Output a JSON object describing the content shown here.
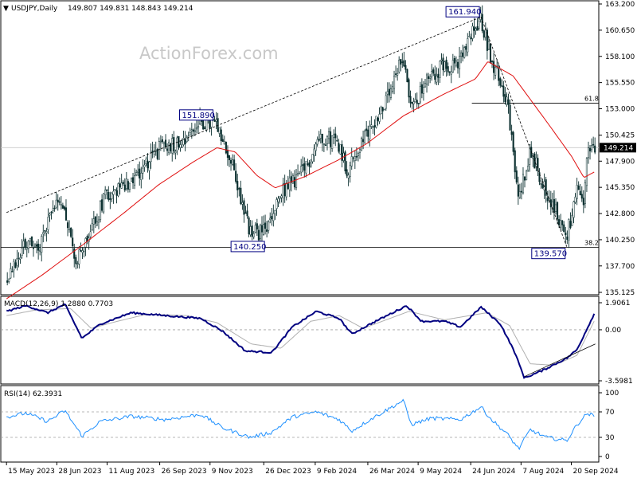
{
  "header": {
    "symbol_arrow": "▼",
    "symbol": "USDJPY,Daily",
    "ohlc": "149.807 149.831 148.843 149.214"
  },
  "watermark": "ActionForex.com",
  "colors": {
    "candle": "#0b2f2f",
    "ma": "#e01010",
    "macd": "#000080",
    "signal": "#b0b0b0",
    "rsi": "#1e90ff",
    "trendline": "#000000",
    "label_border": "#000080",
    "price_bg": "#000000"
  },
  "chart_data": [
    {
      "type": "candlestick",
      "panel": "price",
      "title": "USDJPY,Daily",
      "series": [
        {
          "name": "USDJPY",
          "kind": "candles"
        },
        {
          "name": "moving average",
          "kind": "line"
        }
      ],
      "x_tick_labels": [
        "15 May 2023",
        "28 Jun 2023",
        "11 Aug 2023",
        "26 Sep 2023",
        "9 Nov 2023",
        "26 Dec 2023",
        "9 Feb 2024",
        "26 Mar 2024",
        "9 May 2024",
        "24 Jun 2024",
        "7 Aug 2024",
        "20 Sep 2024"
      ],
      "y_tick_labels": [
        "163.200",
        "160.650",
        "158.100",
        "155.550",
        "153.000",
        "150.425",
        "147.900",
        "145.350",
        "142.800",
        "140.250",
        "137.700",
        "135.125"
      ],
      "ylim": [
        135.125,
        163.2
      ],
      "current_price": "149.214",
      "close_path": [
        {
          "date": "2023-05-15",
          "value": 136.1
        },
        {
          "date": "2023-05-30",
          "value": 139.8
        },
        {
          "date": "2023-06-12",
          "value": 139.6
        },
        {
          "date": "2023-06-30",
          "value": 144.8
        },
        {
          "date": "2023-07-14",
          "value": 138.2
        },
        {
          "date": "2023-07-28",
          "value": 141.2
        },
        {
          "date": "2023-08-10",
          "value": 144.6
        },
        {
          "date": "2023-08-31",
          "value": 145.8
        },
        {
          "date": "2023-09-15",
          "value": 147.9
        },
        {
          "date": "2023-09-29",
          "value": 149.4
        },
        {
          "date": "2023-10-13",
          "value": 149.7
        },
        {
          "date": "2023-10-31",
          "value": 151.6
        },
        {
          "date": "2023-11-13",
          "value": 151.6
        },
        {
          "date": "2023-11-29",
          "value": 147.3
        },
        {
          "date": "2023-12-14",
          "value": 140.9
        },
        {
          "date": "2023-12-28",
          "value": 141.1
        },
        {
          "date": "2024-01-12",
          "value": 145.0
        },
        {
          "date": "2024-01-31",
          "value": 147.0
        },
        {
          "date": "2024-02-13",
          "value": 150.4
        },
        {
          "date": "2024-02-29",
          "value": 149.8
        },
        {
          "date": "2024-03-08",
          "value": 147.0
        },
        {
          "date": "2024-03-29",
          "value": 151.3
        },
        {
          "date": "2024-04-15",
          "value": 154.4
        },
        {
          "date": "2024-04-26",
          "value": 158.3
        },
        {
          "date": "2024-05-03",
          "value": 153.0
        },
        {
          "date": "2024-05-17",
          "value": 155.7
        },
        {
          "date": "2024-05-31",
          "value": 157.3
        },
        {
          "date": "2024-06-14",
          "value": 157.4
        },
        {
          "date": "2024-06-28",
          "value": 160.9
        },
        {
          "date": "2024-07-03",
          "value": 161.7
        },
        {
          "date": "2024-07-12",
          "value": 157.9
        },
        {
          "date": "2024-07-26",
          "value": 153.8
        },
        {
          "date": "2024-08-02",
          "value": 146.5
        },
        {
          "date": "2024-08-05",
          "value": 144.2
        },
        {
          "date": "2024-08-15",
          "value": 149.1
        },
        {
          "date": "2024-08-29",
          "value": 144.9
        },
        {
          "date": "2024-09-16",
          "value": 140.6
        },
        {
          "date": "2024-09-25",
          "value": 144.8
        },
        {
          "date": "2024-10-01",
          "value": 143.6
        },
        {
          "date": "2024-10-04",
          "value": 148.7
        },
        {
          "date": "2024-10-11",
          "value": 149.2
        }
      ],
      "moving_average_path": [
        {
          "date": "2023-05-15",
          "value": 134.5
        },
        {
          "date": "2023-06-15",
          "value": 136.8
        },
        {
          "date": "2023-07-20",
          "value": 139.7
        },
        {
          "date": "2023-08-25",
          "value": 142.8
        },
        {
          "date": "2023-09-25",
          "value": 145.6
        },
        {
          "date": "2023-10-25",
          "value": 147.8
        },
        {
          "date": "2023-11-15",
          "value": 149.2
        },
        {
          "date": "2023-12-01",
          "value": 148.8
        },
        {
          "date": "2023-12-20",
          "value": 146.5
        },
        {
          "date": "2024-01-05",
          "value": 145.3
        },
        {
          "date": "2024-01-31",
          "value": 146.4
        },
        {
          "date": "2024-02-29",
          "value": 148.0
        },
        {
          "date": "2024-03-25",
          "value": 149.6
        },
        {
          "date": "2024-04-26",
          "value": 152.3
        },
        {
          "date": "2024-05-31",
          "value": 154.4
        },
        {
          "date": "2024-06-28",
          "value": 155.9
        },
        {
          "date": "2024-07-09",
          "value": 157.6
        },
        {
          "date": "2024-07-31",
          "value": 156.2
        },
        {
          "date": "2024-08-31",
          "value": 151.5
        },
        {
          "date": "2024-09-20",
          "value": 148.4
        },
        {
          "date": "2024-10-01",
          "value": 146.3
        },
        {
          "date": "2024-10-11",
          "value": 146.9
        }
      ],
      "annotations": [
        {
          "label": "161.940",
          "value": 161.94,
          "date": "2024-07-03"
        },
        {
          "label": "151.890",
          "value": 151.89,
          "date": "2023-11-13"
        },
        {
          "label": "140.250",
          "value": 140.25,
          "date": "2023-12-28"
        },
        {
          "label": "139.570",
          "value": 139.57,
          "date": "2024-09-16"
        }
      ],
      "horizontal_lines": [
        {
          "label": "61.8",
          "value": 153.55
        },
        {
          "label": "38.2",
          "value": 139.5
        },
        {
          "label": "",
          "value": 149.214
        }
      ],
      "trendlines": [
        {
          "style": "dashed",
          "from": {
            "date": "2023-05-15",
            "value": 142.9
          },
          "to": {
            "date": "2024-07-03",
            "value": 161.94
          }
        },
        {
          "style": "dashed",
          "from": {
            "date": "2024-07-03",
            "value": 161.94
          },
          "to": {
            "date": "2024-09-16",
            "value": 139.57
          }
        }
      ]
    },
    {
      "type": "line",
      "panel": "macd",
      "title": "MACD(12,26,9) 1.2880 0.7703",
      "y_tick_labels": [
        "1.9061",
        "0.00",
        "-3.5981"
      ],
      "ylim": [
        -3.5981,
        1.9061
      ],
      "macd_path": [
        {
          "date": "2023-05-15",
          "value": 1.3
        },
        {
          "date": "2023-06-01",
          "value": 1.7
        },
        {
          "date": "2023-06-20",
          "value": 1.2
        },
        {
          "date": "2023-07-05",
          "value": 1.8
        },
        {
          "date": "2023-07-20",
          "value": -0.6
        },
        {
          "date": "2023-08-05",
          "value": 0.4
        },
        {
          "date": "2023-09-01",
          "value": 1.2
        },
        {
          "date": "2023-10-01",
          "value": 1.0
        },
        {
          "date": "2023-11-01",
          "value": 0.8
        },
        {
          "date": "2023-11-20",
          "value": -0.1
        },
        {
          "date": "2023-12-10",
          "value": -1.5
        },
        {
          "date": "2024-01-02",
          "value": -1.6
        },
        {
          "date": "2024-01-20",
          "value": 0.2
        },
        {
          "date": "2024-02-10",
          "value": 1.3
        },
        {
          "date": "2024-03-01",
          "value": 0.8
        },
        {
          "date": "2024-03-12",
          "value": -0.3
        },
        {
          "date": "2024-03-28",
          "value": 0.4
        },
        {
          "date": "2024-04-29",
          "value": 1.7
        },
        {
          "date": "2024-05-12",
          "value": 0.6
        },
        {
          "date": "2024-06-01",
          "value": 0.6
        },
        {
          "date": "2024-06-15",
          "value": 0.2
        },
        {
          "date": "2024-07-03",
          "value": 1.6
        },
        {
          "date": "2024-07-20",
          "value": 0.4
        },
        {
          "date": "2024-08-01",
          "value": -1.5
        },
        {
          "date": "2024-08-10",
          "value": -3.4
        },
        {
          "date": "2024-08-25",
          "value": -2.9
        },
        {
          "date": "2024-09-16",
          "value": -2.0
        },
        {
          "date": "2024-09-25",
          "value": -1.4
        },
        {
          "date": "2024-10-11",
          "value": 1.3
        }
      ],
      "signal_path": [
        {
          "date": "2023-05-15",
          "value": 1.0
        },
        {
          "date": "2023-06-10",
          "value": 1.4
        },
        {
          "date": "2023-07-10",
          "value": 1.5
        },
        {
          "date": "2023-07-28",
          "value": 0.1
        },
        {
          "date": "2023-08-20",
          "value": 0.6
        },
        {
          "date": "2023-09-15",
          "value": 1.1
        },
        {
          "date": "2023-10-20",
          "value": 1.0
        },
        {
          "date": "2023-11-15",
          "value": 0.5
        },
        {
          "date": "2023-12-15",
          "value": -1.0
        },
        {
          "date": "2024-01-10",
          "value": -1.3
        },
        {
          "date": "2024-02-05",
          "value": 0.6
        },
        {
          "date": "2024-03-01",
          "value": 1.0
        },
        {
          "date": "2024-03-22",
          "value": 0.1
        },
        {
          "date": "2024-05-01",
          "value": 1.3
        },
        {
          "date": "2024-06-01",
          "value": 0.7
        },
        {
          "date": "2024-07-08",
          "value": 1.2
        },
        {
          "date": "2024-07-28",
          "value": 0.3
        },
        {
          "date": "2024-08-15",
          "value": -2.4
        },
        {
          "date": "2024-09-05",
          "value": -2.5
        },
        {
          "date": "2024-09-25",
          "value": -1.8
        },
        {
          "date": "2024-10-11",
          "value": 0.77
        }
      ],
      "trendlines": [
        {
          "style": "solid",
          "from": {
            "date": "2024-08-10",
            "value": -3.3
          },
          "to": {
            "date": "2024-10-11",
            "value": -1.0
          }
        }
      ]
    },
    {
      "type": "line",
      "panel": "rsi",
      "title": "RSI(14) 62.3931",
      "y_tick_labels": [
        "100",
        "70",
        "30",
        "0"
      ],
      "ylim": [
        0,
        100
      ],
      "levels": [
        70,
        30
      ],
      "rsi_path": [
        {
          "date": "2023-05-15",
          "value": 62
        },
        {
          "date": "2023-06-01",
          "value": 68
        },
        {
          "date": "2023-06-20",
          "value": 55
        },
        {
          "date": "2023-07-05",
          "value": 72
        },
        {
          "date": "2023-07-20",
          "value": 32
        },
        {
          "date": "2023-08-05",
          "value": 55
        },
        {
          "date": "2023-09-01",
          "value": 63
        },
        {
          "date": "2023-10-01",
          "value": 58
        },
        {
          "date": "2023-11-01",
          "value": 66
        },
        {
          "date": "2023-11-20",
          "value": 45
        },
        {
          "date": "2023-12-14",
          "value": 30
        },
        {
          "date": "2024-01-02",
          "value": 38
        },
        {
          "date": "2024-01-20",
          "value": 62
        },
        {
          "date": "2024-02-10",
          "value": 70
        },
        {
          "date": "2024-03-01",
          "value": 58
        },
        {
          "date": "2024-03-12",
          "value": 40
        },
        {
          "date": "2024-03-28",
          "value": 58
        },
        {
          "date": "2024-04-26",
          "value": 88
        },
        {
          "date": "2024-05-03",
          "value": 50
        },
        {
          "date": "2024-05-20",
          "value": 60
        },
        {
          "date": "2024-06-15",
          "value": 58
        },
        {
          "date": "2024-07-03",
          "value": 78
        },
        {
          "date": "2024-07-12",
          "value": 58
        },
        {
          "date": "2024-07-26",
          "value": 35
        },
        {
          "date": "2024-08-05",
          "value": 12
        },
        {
          "date": "2024-08-15",
          "value": 42
        },
        {
          "date": "2024-08-29",
          "value": 30
        },
        {
          "date": "2024-09-16",
          "value": 25
        },
        {
          "date": "2024-09-25",
          "value": 50
        },
        {
          "date": "2024-10-04",
          "value": 68
        },
        {
          "date": "2024-10-11",
          "value": 62.39
        }
      ]
    }
  ]
}
